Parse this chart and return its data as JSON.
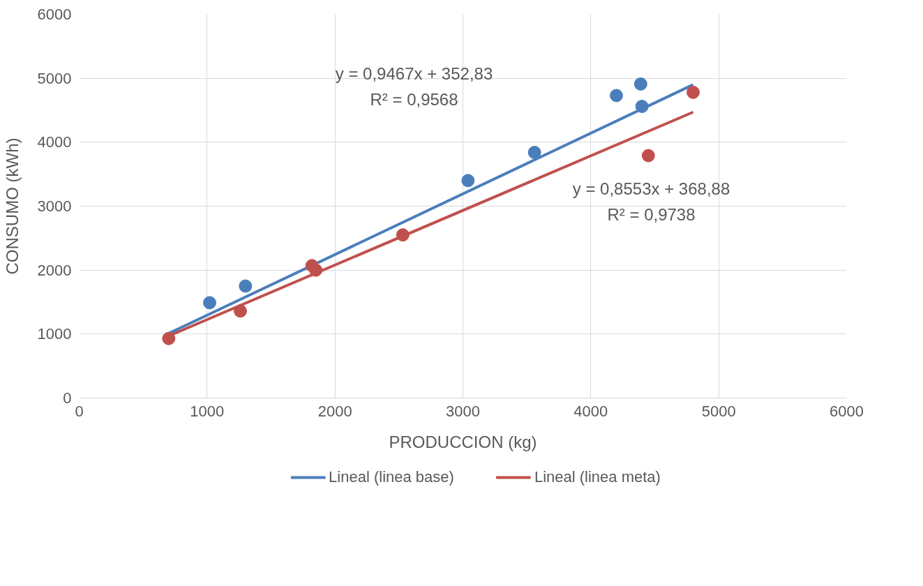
{
  "chart_data": {
    "type": "scatter",
    "xlabel": "PRODUCCION (kg)",
    "ylabel": "CONSUMO (kWh)",
    "xlim": [
      0,
      6000
    ],
    "ylim": [
      0,
      6000
    ],
    "xticks": [
      0,
      1000,
      2000,
      3000,
      4000,
      5000,
      6000
    ],
    "yticks": [
      0,
      1000,
      2000,
      3000,
      4000,
      5000,
      6000
    ],
    "grid": true,
    "legend": "bottom",
    "series": [
      {
        "color": "#4a7ebb",
        "marker": "circle",
        "x": [
          1020,
          1300,
          3040,
          3560,
          4200,
          4390,
          4400
        ],
        "values": [
          1490,
          1750,
          3400,
          3840,
          4730,
          4910,
          4560
        ]
      },
      {
        "color": "#c0504d",
        "marker": "circle",
        "x": [
          700,
          1260,
          1820,
          1850,
          2530,
          4450,
          4800
        ],
        "values": [
          930,
          1360,
          2070,
          2000,
          2550,
          3790,
          4780
        ]
      },
      {
        "type": "line",
        "marker": "none",
        "name": "Lineal (linea base)",
        "color": "#4a7ebb",
        "x": [
          700,
          4800
        ],
        "values": [
          1010,
          4900
        ]
      },
      {
        "type": "line",
        "marker": "none",
        "name": "Lineal (linea meta)",
        "color": "#c0504d",
        "x": [
          700,
          4800
        ],
        "values": [
          970,
          4470
        ]
      }
    ],
    "annotations": [
      "y = 0,9467x + 352,83",
      "R² = 0,9568",
      "y = 0,8553x + 368,88",
      "R² = 0,9738"
    ]
  }
}
